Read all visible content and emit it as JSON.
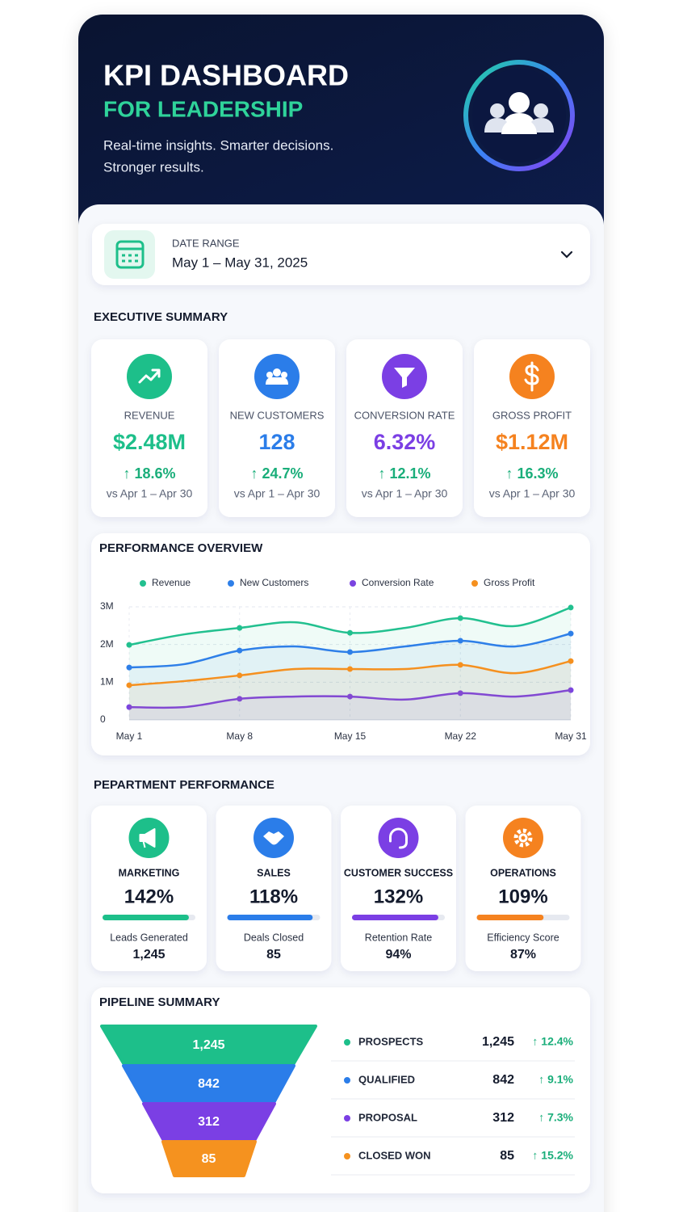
{
  "header": {
    "title": "KPI DASHBOARD",
    "subtitle": "FOR LEADERSHIP",
    "tagline": [
      "Real-time insights. Smarter decisions.",
      "Stronger results."
    ]
  },
  "date_range": {
    "label": "DATE RANGE",
    "value": "May 1 – May 31, 2025"
  },
  "executive_summary": {
    "title": "EXECUTIVE SUMMARY",
    "cards": [
      {
        "label": "REVENUE",
        "value": "$2.48M",
        "change": "↑ 18.6%",
        "comparison": "vs Apr 1 – Apr 30",
        "color": "#1dbf8a"
      },
      {
        "label": "NEW CUSTOMERS",
        "value": "128",
        "change": "↑ 24.7%",
        "comparison": "vs Apr 1 – Apr 30",
        "color": "#2b7de9"
      },
      {
        "label": "CONVERSION RATE",
        "value": "6.32%",
        "change": "↑ 12.1%",
        "comparison": "vs Apr 1 – Apr 30",
        "color": "#7b3fe4"
      },
      {
        "label": "GROSS PROFIT",
        "value": "$1.12M",
        "change": "↑ 16.3%",
        "comparison": "vs Apr 1 – Apr 30",
        "color": "#f5821f"
      }
    ]
  },
  "chart_data": {
    "type": "line",
    "title": "PERFORMANCE OVERVIEW",
    "categories": [
      "May 1",
      null,
      "May 8",
      null,
      "May 15",
      null,
      "May 22",
      null,
      "May 31"
    ],
    "series": [
      {
        "name": "Revenue",
        "color": "#22c08f",
        "values": [
          1990000,
          2270000,
          2440000,
          2590000,
          2310000,
          2440000,
          2700000,
          2490000,
          2980000
        ]
      },
      {
        "name": "New Customers",
        "color": "#2e7fe8",
        "values": [
          1390000,
          1480000,
          1840000,
          1950000,
          1800000,
          1950000,
          2100000,
          1950000,
          2290000
        ]
      },
      {
        "name": "Conversion Rate",
        "color": "#7a44e0",
        "values": [
          340000,
          340000,
          560000,
          620000,
          620000,
          540000,
          710000,
          620000,
          790000
        ]
      },
      {
        "name": "Gross Profit",
        "color": "#f5901f",
        "values": [
          920000,
          1030000,
          1180000,
          1350000,
          1350000,
          1350000,
          1460000,
          1240000,
          1560000
        ]
      }
    ],
    "ylim": [
      0,
      3000000
    ],
    "yticks": [
      0,
      {
        "value": 1000000,
        "label": "1M"
      },
      {
        "value": 2000000,
        "label": "2M"
      },
      {
        "value": 3000000,
        "label": "3M"
      }
    ],
    "grid": true,
    "legend": "top"
  },
  "department_performance": {
    "title": "PEPARTMENT PERFORMANCE",
    "progress_range": [
      0,
      100
    ],
    "cards": [
      {
        "label": "MARKETING",
        "value": "142%",
        "progress": 93,
        "metric_label": "Leads Generated",
        "metric_value": "1,245",
        "color": "#1dbf8a"
      },
      {
        "label": "SALES",
        "value": "118%",
        "progress": 92,
        "metric_label": "Deals Closed",
        "metric_value": "85",
        "color": "#2b7de9"
      },
      {
        "label": "CUSTOMER SUCCESS",
        "value": "132%",
        "progress": 93,
        "metric_label": "Retention Rate",
        "metric_value": "94%",
        "color": "#7b3fe4"
      },
      {
        "label": "OPERATIONS",
        "value": "109%",
        "progress": 72,
        "metric_label": "Efficiency Score",
        "metric_value": "87%",
        "color": "#f5821f"
      }
    ]
  },
  "pipeline_summary": {
    "title": "PIPELINE SUMMARY",
    "stages": [
      {
        "name": "PROSPECTS",
        "count": "1,245",
        "change": "↑ 12.4%",
        "color": "#1dbf8a"
      },
      {
        "name": "QUALIFIED",
        "count": "842",
        "change": "↑ 9.1%",
        "color": "#2b7de9"
      },
      {
        "name": "PROPOSAL",
        "count": "312",
        "change": "↑ 7.3%",
        "color": "#7b3fe4"
      },
      {
        "name": "CLOSED WON",
        "count": "85",
        "change": "↑ 15.2%",
        "color": "#f5921f"
      }
    ]
  }
}
